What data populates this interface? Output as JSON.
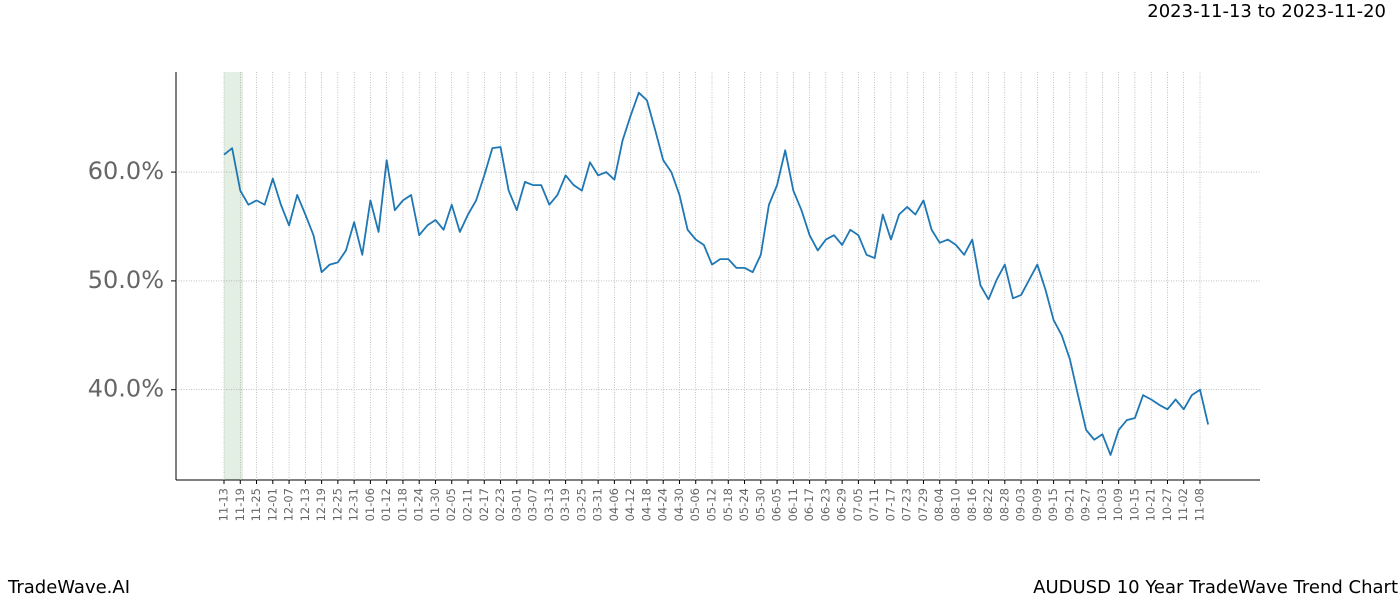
{
  "chart_data": {
    "type": "line",
    "title": "AUDUSD 10 Year TradeWave Trend Chart",
    "subtitle": "2023-11-13 to 2023-11-20",
    "brand": "TradeWave.AI",
    "categories": [
      "11-13",
      null,
      "11-19",
      null,
      "11-25",
      null,
      "12-01",
      null,
      "12-07",
      null,
      "12-13",
      null,
      "12-19",
      null,
      "12-25",
      null,
      "12-31",
      null,
      "01-06",
      null,
      "01-12",
      null,
      "01-18",
      null,
      "01-24",
      null,
      "01-30",
      null,
      "02-05",
      null,
      "02-11",
      null,
      "02-17",
      null,
      "02-23",
      null,
      "03-01",
      null,
      "03-07",
      null,
      "03-13",
      null,
      "03-19",
      null,
      "03-25",
      null,
      "03-31",
      null,
      "04-06",
      null,
      "04-12",
      null,
      "04-18",
      null,
      "04-24",
      null,
      "04-30",
      null,
      "05-06",
      null,
      "05-12",
      null,
      "05-18",
      null,
      "05-24",
      null,
      "05-30",
      null,
      "06-05",
      null,
      "06-11",
      null,
      "06-17",
      null,
      "06-23",
      null,
      "06-29",
      null,
      "07-05",
      null,
      "07-11",
      null,
      "07-17",
      null,
      "07-23",
      null,
      "07-29",
      null,
      "08-04",
      null,
      "08-10",
      null,
      "08-16",
      null,
      "08-22",
      null,
      "08-28",
      null,
      "09-03",
      null,
      "09-09",
      null,
      "09-15",
      null,
      "09-21",
      null,
      "09-27",
      null,
      "10-03",
      null,
      "10-09",
      null,
      "10-15",
      null,
      "10-21",
      null,
      "10-27",
      null,
      "11-02",
      null,
      "11-08",
      null
    ],
    "values": [
      61.6,
      62.2,
      58.3,
      57.0,
      57.4,
      57.0,
      59.4,
      57.0,
      55.1,
      57.9,
      56.1,
      54.2,
      50.8,
      51.5,
      51.7,
      52.8,
      55.4,
      52.4,
      57.4,
      54.5,
      61.1,
      56.5,
      57.4,
      57.9,
      54.2,
      55.1,
      55.6,
      54.7,
      57.0,
      54.5,
      56.1,
      57.4,
      59.7,
      62.2,
      62.3,
      58.3,
      56.5,
      59.1,
      58.8,
      58.8,
      57.0,
      57.9,
      59.7,
      58.8,
      58.3,
      60.9,
      59.7,
      60.0,
      59.3,
      62.9,
      65.2,
      67.3,
      66.6,
      63.9,
      61.1,
      60.0,
      57.9,
      54.7,
      53.8,
      53.3,
      51.5,
      52.0,
      52.0,
      51.2,
      51.2,
      50.8,
      52.4,
      57.0,
      58.8,
      62.0,
      58.3,
      56.5,
      54.2,
      52.8,
      53.8,
      54.2,
      53.3,
      54.7,
      54.2,
      52.4,
      52.1,
      56.1,
      53.8,
      56.1,
      56.8,
      56.1,
      57.4,
      54.7,
      53.5,
      53.8,
      53.3,
      52.4,
      53.8,
      49.6,
      48.3,
      50.1,
      51.5,
      48.4,
      48.7,
      50.1,
      51.5,
      49.2,
      46.4,
      45.0,
      42.8,
      39.5,
      36.3,
      35.4,
      35.9,
      34.0,
      36.3,
      37.2,
      37.4,
      39.5,
      39.1,
      38.6,
      38.2,
      39.1,
      38.2,
      39.5,
      40.0,
      36.8
    ],
    "color": "#1f77b4",
    "ylim": [
      31.7,
      69.2
    ],
    "yticks": [
      {
        "value": 40,
        "label": "40.0%"
      },
      {
        "value": 50,
        "label": "50.0%"
      },
      {
        "value": 60,
        "label": "60.0%"
      }
    ],
    "grid": true
  }
}
